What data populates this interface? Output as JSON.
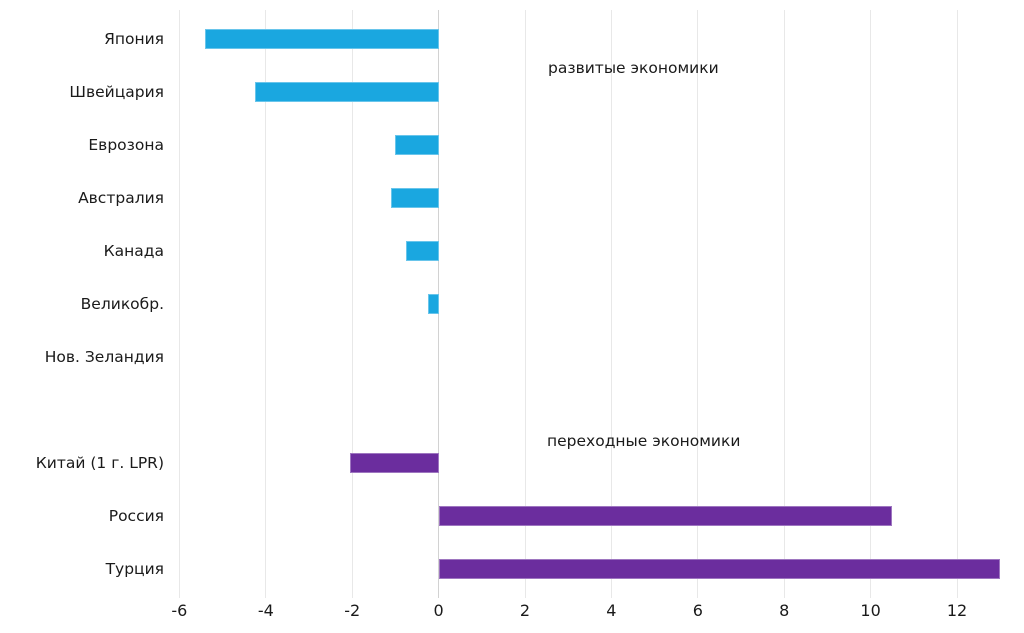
{
  "chart_data": {
    "type": "bar",
    "orientation": "horizontal",
    "title": "",
    "xlabel": "",
    "ylabel": "",
    "xlim": [
      -6.2,
      13.6
    ],
    "grid": "vertical-only",
    "legend_position": "none",
    "xticks": [
      -6,
      -4,
      -2,
      0,
      2,
      4,
      6,
      8,
      10,
      12
    ],
    "colors": {
      "developed": "#1aa7e0",
      "transition": "#6b2d9e"
    },
    "rows": [
      {
        "label": "Япония",
        "value": -5.4,
        "group": "developed"
      },
      {
        "label": "Швейцария",
        "value": -4.25,
        "group": "developed"
      },
      {
        "label": "Еврозона",
        "value": -1.0,
        "group": "developed"
      },
      {
        "label": "Австралия",
        "value": -1.1,
        "group": "developed"
      },
      {
        "label": "Канада",
        "value": -0.75,
        "group": "developed"
      },
      {
        "label": "Великобр.",
        "value": -0.25,
        "group": "developed"
      },
      {
        "label": "Нов. Зеландия",
        "value": 0,
        "group": "developed"
      },
      {
        "label": "",
        "value": null,
        "group": "spacer"
      },
      {
        "label": "Китай (1 г. LPR)",
        "value": -2.05,
        "group": "transition"
      },
      {
        "label": "Россия",
        "value": 10.5,
        "group": "transition"
      },
      {
        "label": "Турция",
        "value": 13.0,
        "group": "transition"
      }
    ],
    "annotations": [
      {
        "text": "развитые экономики"
      },
      {
        "text": "переходные экономики"
      }
    ]
  }
}
